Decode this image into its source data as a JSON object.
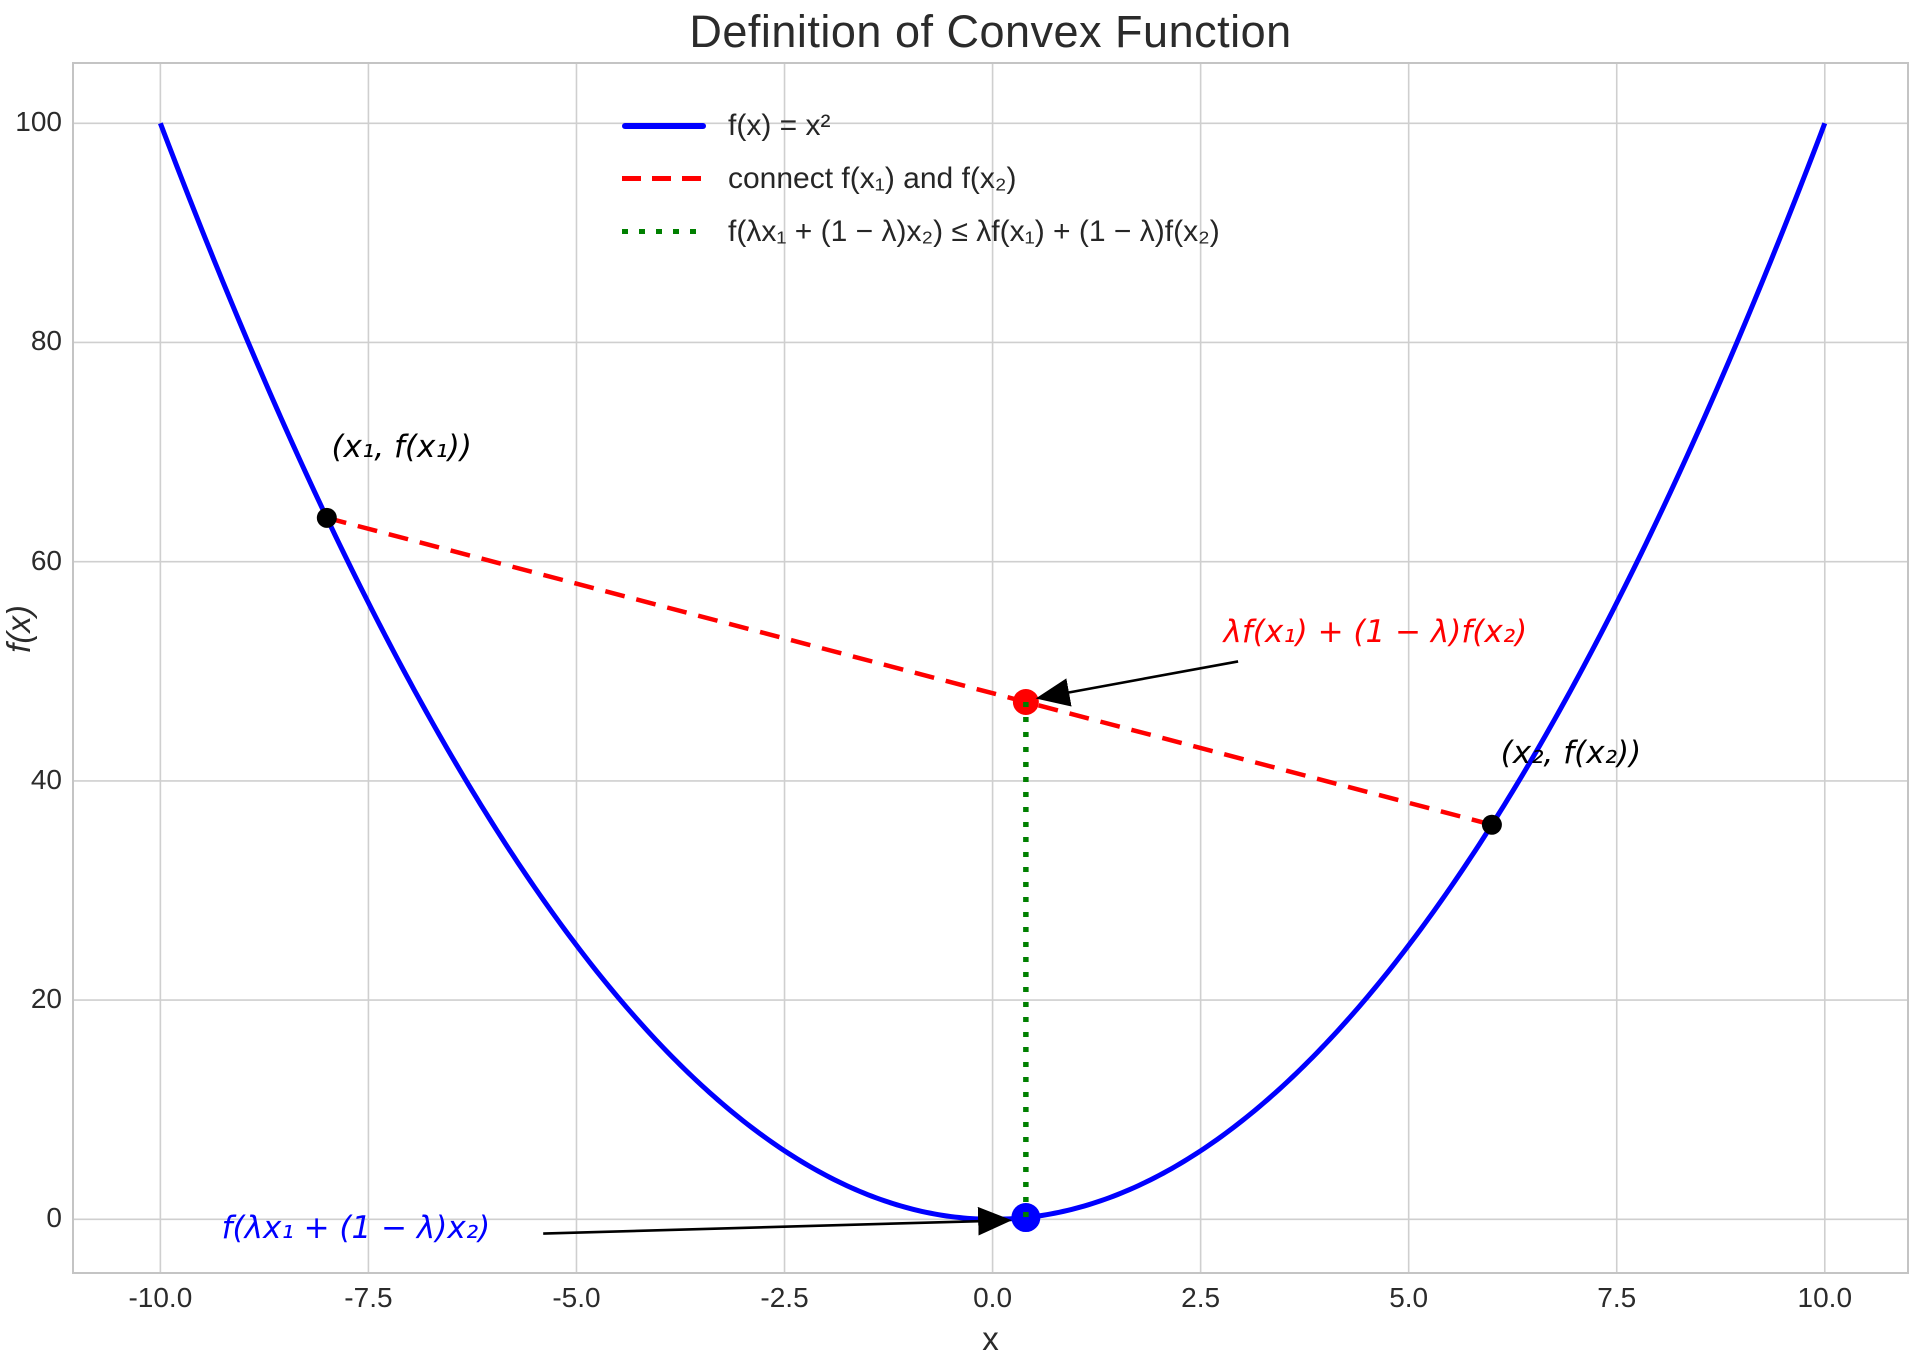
{
  "title": "Definition of Convex Function",
  "chart_data": {
    "type": "line",
    "title": "Definition of Convex Function",
    "xlabel": "x",
    "ylabel": "f(x)",
    "xlim": [
      -11.05,
      11.0
    ],
    "ylim": [
      -4.9,
      105.5
    ],
    "x_ticks": [
      -10.0,
      -7.5,
      -5.0,
      -2.5,
      0.0,
      2.5,
      5.0,
      7.5,
      10.0
    ],
    "x_tick_labels": [
      "-10.0",
      "-7.5",
      "-5.0",
      "-2.5",
      "0.0",
      "2.5",
      "5.0",
      "7.5",
      "10.0"
    ],
    "y_ticks": [
      0,
      20,
      40,
      60,
      80,
      100
    ],
    "y_tick_labels": [
      "0",
      "20",
      "40",
      "60",
      "80",
      "100"
    ],
    "grid": true,
    "background": "#ffffff",
    "grid_color": "#cfcfcf",
    "spine_color": "#c4c4c4",
    "legend_position": "upper left-center, no frame",
    "lambda": 0.4,
    "x1": -8,
    "x2": 6,
    "series": [
      {
        "name": "f(x) = x²",
        "style": "solid",
        "color": "#0000ff",
        "width": 5,
        "expr": "x^2",
        "x_range": [
          -10,
          10
        ]
      },
      {
        "name": "connect f(x₁) and f(x₂)",
        "style": "dashed",
        "color": "#ff0000",
        "width": 4.5,
        "points": [
          [
            -8,
            64
          ],
          [
            6,
            36
          ]
        ]
      },
      {
        "name": "f(λx₁ + (1 − λ)x₂) ≤ λf(x₁) + (1 − λ)f(x₂)",
        "style": "dotted",
        "color": "#008000",
        "width": 5.5,
        "points": [
          [
            0.4,
            47.2
          ],
          [
            0.4,
            0.16
          ]
        ]
      }
    ],
    "markers": [
      {
        "id": "point-x1",
        "x": -8,
        "y": 64,
        "color": "#000000",
        "radius": 10
      },
      {
        "id": "point-x2",
        "x": 6,
        "y": 36,
        "color": "#000000",
        "radius": 10
      },
      {
        "id": "point-chord",
        "x": 0.4,
        "y": 47.2,
        "color": "#ff0000",
        "radius": 13
      },
      {
        "id": "point-curve",
        "x": 0.4,
        "y": 0.16,
        "color": "#0000ff",
        "radius": 14.5
      }
    ],
    "annotations": [
      {
        "id": "label-x1",
        "text": "(x₁, f(x₁))",
        "color": "#000000",
        "x": -7.1,
        "y": 70.5,
        "arrow": null
      },
      {
        "id": "label-x2",
        "text": "(x₂, f(x₂))",
        "color": "#000000",
        "x": 6.95,
        "y": 42.5,
        "arrow": null
      },
      {
        "id": "label-chord-value",
        "text": "λf(x₁) + (1 − λ)f(x₂)",
        "color": "#ff0000",
        "x": 4.6,
        "y": 53.6,
        "arrow": {
          "from": [
            2.95,
            50.9
          ],
          "to": [
            0.58,
            47.6
          ]
        }
      },
      {
        "id": "label-curve-value",
        "text": "f(λx₁ + (1 − λ)x₂)",
        "color": "#0000ff",
        "x": -7.65,
        "y": -0.8,
        "arrow": {
          "from": [
            -5.4,
            -1.3
          ],
          "to": [
            0.17,
            -0.1
          ]
        }
      }
    ]
  },
  "legend": {
    "items": [
      {
        "label": "f(x) = x²",
        "color": "#0000ff",
        "style": "solid"
      },
      {
        "label": "connect f(x₁) and f(x₂)",
        "color": "#ff0000",
        "style": "dashed"
      },
      {
        "label": "f(λx₁ + (1 − λ)x₂) ≤ λf(x₁) + (1 − λ)f(x₂)",
        "color": "#008000",
        "style": "dotted"
      }
    ]
  }
}
